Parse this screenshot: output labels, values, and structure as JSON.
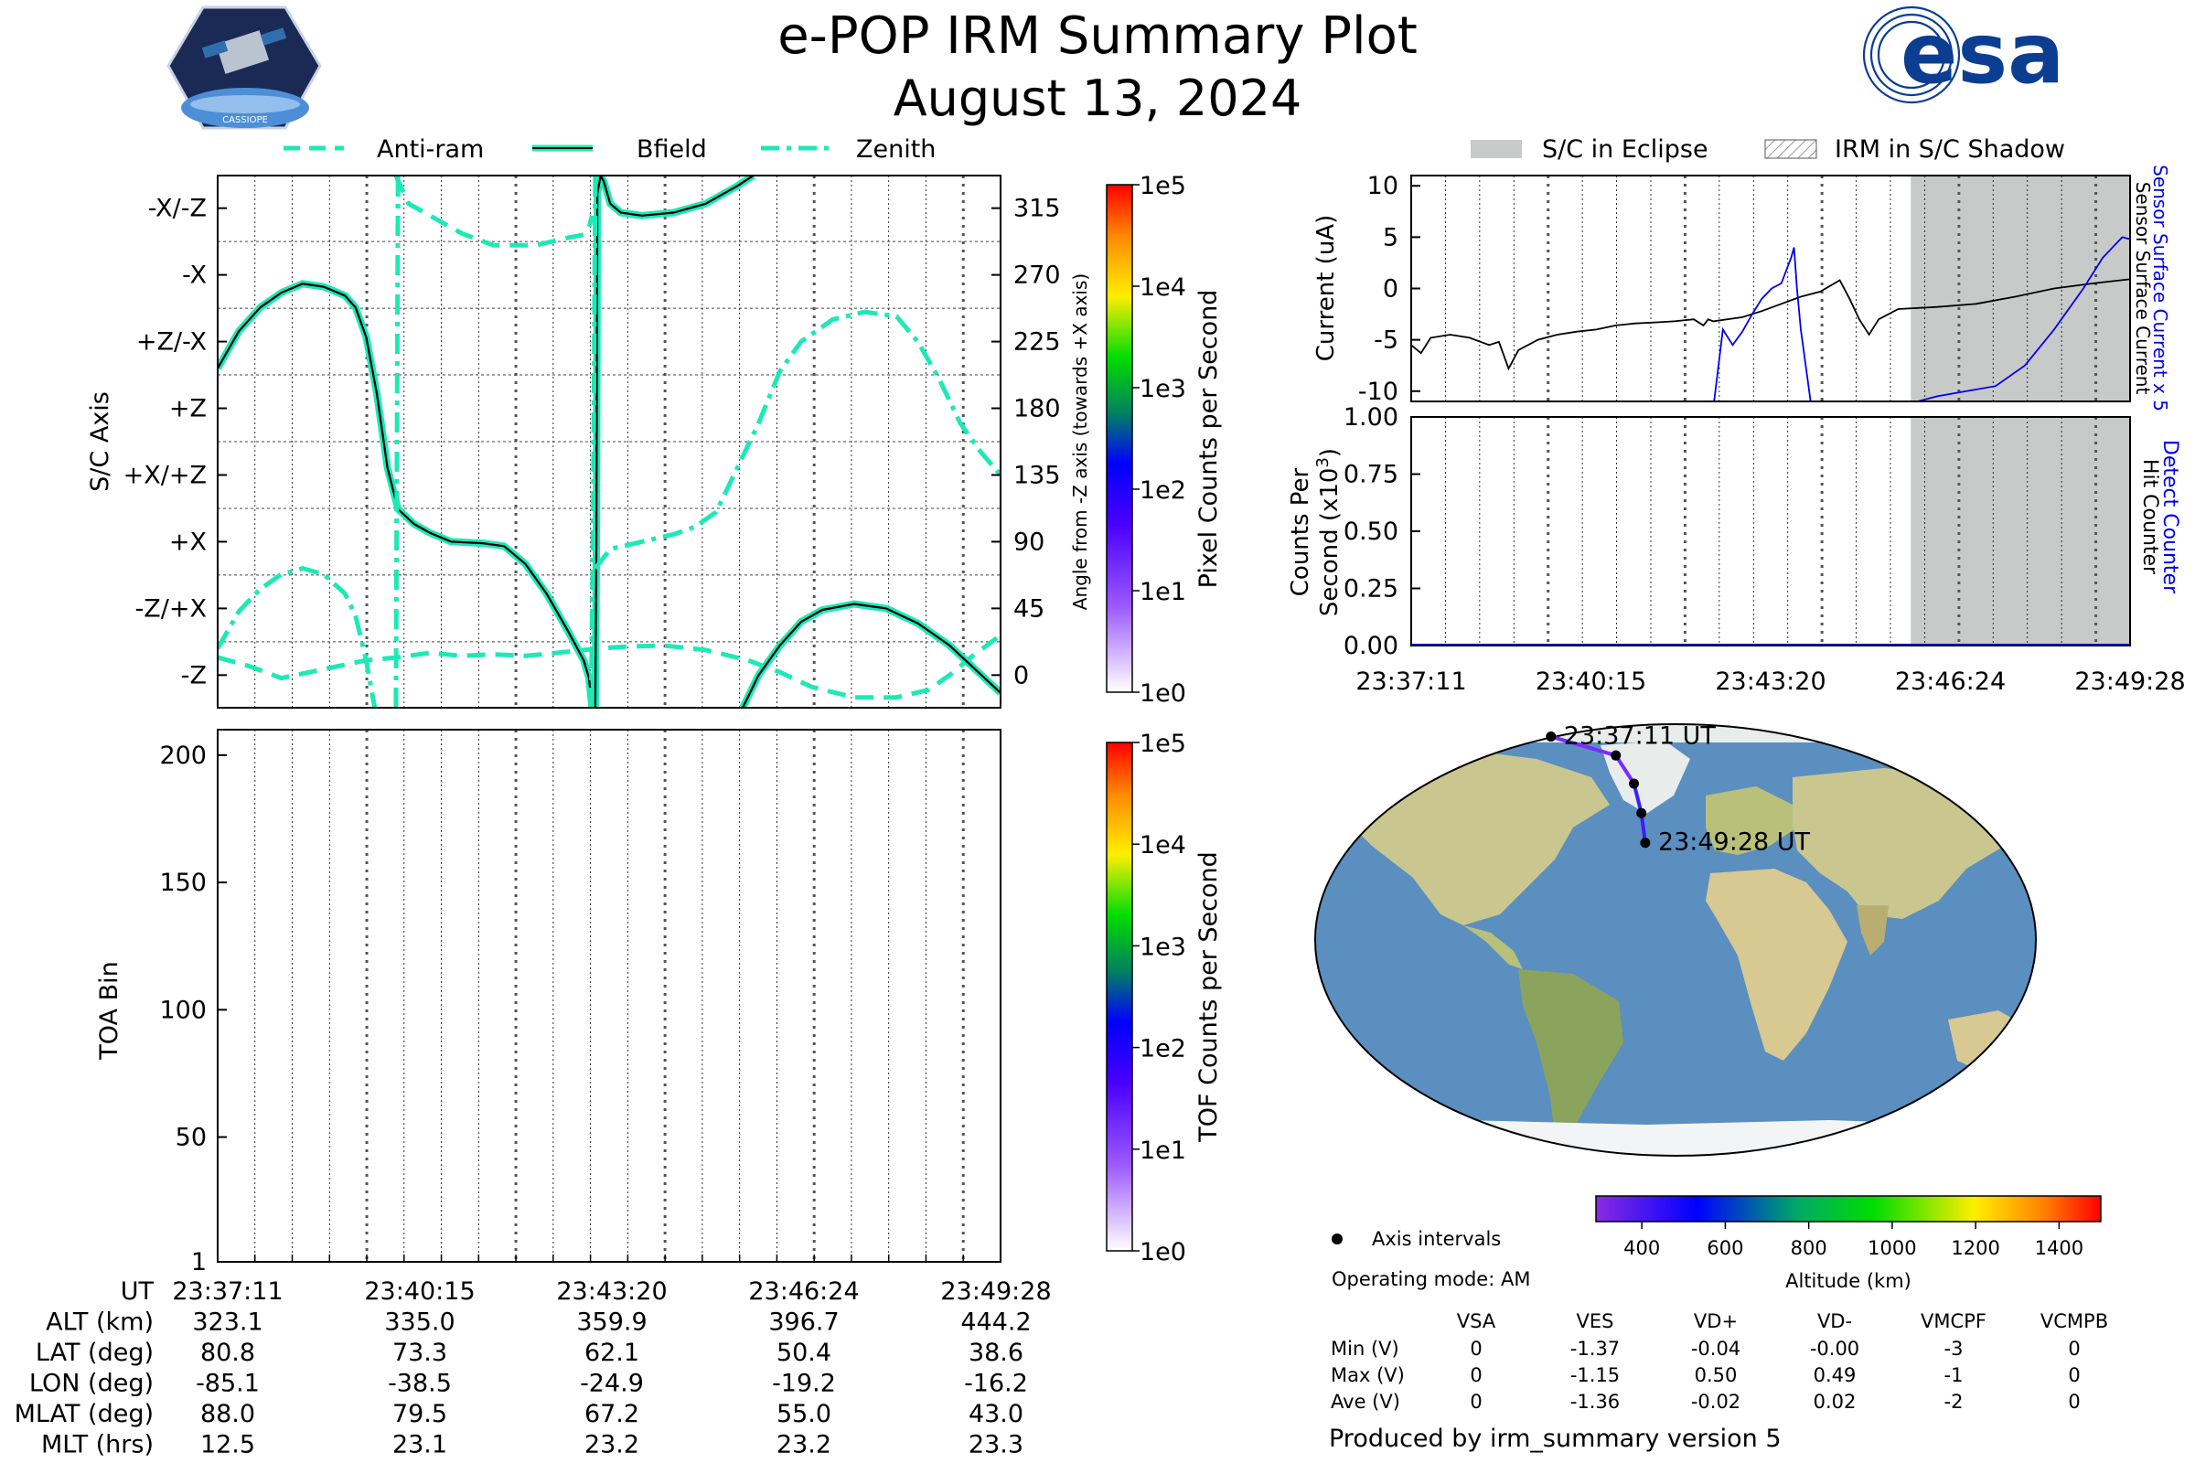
{
  "header": {
    "title": "e-POP IRM Summary Plot",
    "date": "August 13, 2024",
    "logo_left_text": "CASSIOPE",
    "logo_right_text": "esa"
  },
  "legends": {
    "attitude": [
      "Anti-ram",
      "Bfield",
      "Zenith"
    ],
    "eclipse": [
      "S/C in Eclipse",
      "IRM in S/C Shadow"
    ]
  },
  "colors": {
    "attitude_line": "#1de9b6",
    "current_black": "#000000",
    "current_blue": "#0000ee",
    "eclipse_fill": "#c8caca",
    "ocean": "#5b8fc0",
    "land": "#c9c78f"
  },
  "chart_data": [
    {
      "id": "attitude",
      "type": "line",
      "ylabel": "S/C Axis",
      "y2label": "Angle from -Z axis (towards +X axis)",
      "yticklabels": [
        "-X/-Z",
        "-X",
        "+Z/-X",
        "+Z",
        "+X/+Z",
        "+X",
        "-Z/+X",
        "-Z"
      ],
      "y2ticks": [
        315,
        270,
        225,
        180,
        135,
        90,
        45,
        0
      ],
      "ylim": [
        -22,
        337
      ],
      "xlim": [
        0,
        738
      ],
      "colorbar": {
        "label": "Pixel Counts per Second",
        "ticks": [
          "1e5",
          "1e4",
          "1e3",
          "1e2",
          "1e1",
          "1e0"
        ]
      },
      "series": [
        {
          "name": "Anti-ram",
          "style": "dashed",
          "segments": [
            [
              [
                0,
                12
              ],
              [
                30,
                6
              ],
              [
                60,
                -2
              ],
              [
                100,
                4
              ],
              [
                140,
                10
              ],
              [
                170,
                12
              ],
              [
                200,
                15
              ],
              [
                230,
                13
              ],
              [
                260,
                14
              ],
              [
                290,
                13
              ],
              [
                320,
                15
              ],
              [
                345,
                17
              ],
              [
                360,
                18
              ],
              [
                380,
                19
              ],
              [
                420,
                20
              ],
              [
                460,
                17
              ],
              [
                500,
                10
              ],
              [
                530,
                2
              ],
              [
                560,
                -8
              ],
              [
                600,
                -15
              ],
              [
                640,
                -15
              ],
              [
                670,
                -10
              ],
              [
                690,
                0
              ],
              [
                710,
                12
              ],
              [
                738,
                27
              ]
            ],
            [
              [
                168,
                337
              ],
              [
                180,
                318
              ],
              [
                200,
                310
              ],
              [
                230,
                298
              ],
              [
                260,
                290
              ],
              [
                300,
                290
              ],
              [
                330,
                295
              ],
              [
                345,
                297
              ],
              [
                350,
                302
              ],
              [
                353,
                310
              ]
            ]
          ]
        },
        {
          "name": "Bfield",
          "style": "solid",
          "segments": [
            [
              [
                0,
                207
              ],
              [
                20,
                232
              ],
              [
                40,
                248
              ],
              [
                60,
                258
              ],
              [
                80,
                264
              ],
              [
                100,
                262
              ],
              [
                120,
                256
              ],
              [
                130,
                248
              ],
              [
                140,
                228
              ],
              [
                150,
                190
              ],
              [
                160,
                140
              ],
              [
                170,
                112
              ],
              [
                185,
                102
              ],
              [
                200,
                96
              ],
              [
                220,
                90
              ],
              [
                250,
                89
              ],
              [
                270,
                87
              ],
              [
                290,
                75
              ],
              [
                310,
                55
              ],
              [
                330,
                30
              ],
              [
                345,
                10
              ],
              [
                350,
                -2
              ],
              [
                353,
                -22
              ]
            ],
            [
              [
                356,
                -22
              ],
              [
                357,
                90
              ],
              [
                358,
                337
              ]
            ],
            [
              [
                358,
                325
              ],
              [
                361,
                337
              ],
              [
                364,
                333
              ],
              [
                370,
                318
              ],
              [
                380,
                312
              ],
              [
                400,
                310
              ],
              [
                430,
                312
              ],
              [
                460,
                318
              ],
              [
                490,
                330
              ],
              [
                505,
                337
              ]
            ],
            [
              [
                495,
                -22
              ],
              [
                510,
                0
              ],
              [
                530,
                20
              ],
              [
                550,
                36
              ],
              [
                570,
                44
              ],
              [
                600,
                48
              ],
              [
                630,
                45
              ],
              [
                660,
                35
              ],
              [
                690,
                20
              ],
              [
                720,
                0
              ],
              [
                738,
                -12
              ]
            ]
          ]
        },
        {
          "name": "Zenith",
          "style": "dashdot",
          "segments": [
            [
              [
                0,
                18
              ],
              [
                20,
                43
              ],
              [
                40,
                58
              ],
              [
                60,
                68
              ],
              [
                80,
                72
              ],
              [
                100,
                68
              ],
              [
                120,
                55
              ],
              [
                130,
                40
              ],
              [
                140,
                10
              ],
              [
                148,
                -22
              ]
            ],
            [
              [
                168,
                -22
              ],
              [
                169,
                150
              ],
              [
                170,
                337
              ]
            ],
            [
              [
                352,
                -22
              ],
              [
                354,
                110
              ],
              [
                356,
                337
              ]
            ],
            [
              [
                356,
                72
              ],
              [
                370,
                85
              ],
              [
                400,
                90
              ],
              [
                430,
                95
              ],
              [
                450,
                100
              ],
              [
                470,
                110
              ],
              [
                490,
                140
              ],
              [
                510,
                170
              ],
              [
                530,
                205
              ],
              [
                550,
                225
              ],
              [
                580,
                240
              ],
              [
                610,
                245
              ],
              [
                640,
                242
              ],
              [
                660,
                225
              ],
              [
                680,
                200
              ],
              [
                700,
                170
              ],
              [
                720,
                150
              ],
              [
                738,
                135
              ]
            ]
          ]
        }
      ]
    },
    {
      "id": "toa",
      "type": "heatmap",
      "ylabel": "TOA Bin",
      "yticks": [
        200,
        150,
        100,
        50,
        1
      ],
      "ylim": [
        1,
        210
      ],
      "colorbar": {
        "label": "TOF Counts per Second",
        "ticks": [
          "1e5",
          "1e4",
          "1e3",
          "1e2",
          "1e1",
          "1e0"
        ]
      },
      "x_time_labels": [
        "23:37:11",
        "23:40:15",
        "23:43:20",
        "23:46:24",
        "23:49:28"
      ]
    },
    {
      "id": "current",
      "type": "line",
      "ylabel": "Current (uA)",
      "y2label_black": "Sensor Surface Current",
      "y2label_blue": "Sensor Surface Current x 5",
      "yticks": [
        10,
        5,
        0,
        -5,
        -10
      ],
      "ylim": [
        -11,
        11
      ],
      "eclipse_start_fraction": 0.695,
      "series": [
        {
          "name": "Sensor Surface Current",
          "values": [
            [
              0,
              -5.5
            ],
            [
              10,
              -6.3
            ],
            [
              20,
              -4.8
            ],
            [
              40,
              -4.5
            ],
            [
              60,
              -4.8
            ],
            [
              80,
              -5.5
            ],
            [
              90,
              -5.2
            ],
            [
              100,
              -7.8
            ],
            [
              110,
              -6
            ],
            [
              130,
              -5
            ],
            [
              150,
              -4.5
            ],
            [
              170,
              -4.2
            ],
            [
              190,
              -4
            ],
            [
              210,
              -3.6
            ],
            [
              230,
              -3.4
            ],
            [
              250,
              -3.3
            ],
            [
              270,
              -3.2
            ],
            [
              290,
              -3
            ],
            [
              300,
              -3.6
            ],
            [
              305,
              -3
            ],
            [
              310,
              -3.2
            ],
            [
              340,
              -2.8
            ],
            [
              360,
              -2.2
            ],
            [
              380,
              -1.5
            ],
            [
              400,
              -0.8
            ],
            [
              420,
              -0.3
            ],
            [
              440,
              0.8
            ],
            [
              450,
              -1
            ],
            [
              460,
              -3
            ],
            [
              470,
              -4.5
            ],
            [
              480,
              -3
            ],
            [
              500,
              -2
            ],
            [
              540,
              -1.8
            ],
            [
              580,
              -1.5
            ],
            [
              620,
              -0.8
            ],
            [
              660,
              0
            ],
            [
              700,
              0.5
            ],
            [
              738,
              0.9
            ]
          ]
        },
        {
          "name": "Sensor Surface Current x 5",
          "values": [
            [
              311,
              -11
            ],
            [
              320,
              -4
            ],
            [
              330,
              -5.5
            ],
            [
              340,
              -4.2
            ],
            [
              350,
              -2.5
            ],
            [
              360,
              -1
            ],
            [
              370,
              0
            ],
            [
              380,
              0.5
            ],
            [
              390,
              3
            ],
            [
              393,
              4
            ],
            [
              396,
              0
            ],
            [
              400,
              -4
            ],
            [
              410,
              -11
            ]
          ]
        },
        {
          "name": "Sensor Surface Current x 5 (late)",
          "values": [
            [
              520,
              -11
            ],
            [
              540,
              -10.5
            ],
            [
              570,
              -10
            ],
            [
              600,
              -9.5
            ],
            [
              630,
              -7.5
            ],
            [
              660,
              -4
            ],
            [
              690,
              0
            ],
            [
              710,
              3
            ],
            [
              730,
              5
            ],
            [
              738,
              4.8
            ]
          ]
        }
      ]
    },
    {
      "id": "counts",
      "type": "line",
      "ylabel": "Counts Per Second (x10^3)",
      "y2label_blue": "Detect Counter",
      "y2label_black": "Hit Counter",
      "yticks": [
        1.0,
        0.75,
        0.5,
        0.25,
        0.0
      ],
      "ytick_labels": [
        "1.00",
        "0.75",
        "0.50",
        "0.25",
        "0.00"
      ],
      "ylim": [
        0,
        1
      ],
      "eclipse_start_fraction": 0.695,
      "x_time_labels": [
        "23:37:11",
        "23:40:15",
        "23:43:20",
        "23:46:24",
        "23:49:28"
      ],
      "series": [
        {
          "name": "Detect Counter",
          "values": [
            [
              0,
              0
            ],
            [
              738,
              0
            ]
          ]
        }
      ]
    },
    {
      "id": "map",
      "type": "scatter",
      "start_label": "23:37:11 UT",
      "end_label": "23:49:28 UT",
      "track": [
        [
          -85.1,
          80.8
        ],
        [
          -38.5,
          73.3
        ],
        [
          -24.9,
          62.1
        ],
        [
          -19.2,
          50.4
        ],
        [
          -16.2,
          38.6
        ]
      ],
      "colorbar": {
        "label": "Altitude (km)",
        "ticks": [
          400,
          600,
          800,
          1000,
          1200,
          1400
        ],
        "range": [
          290,
          1500
        ]
      }
    }
  ],
  "orbit_table": {
    "rows": [
      {
        "label": "UT",
        "values": [
          "23:37:11",
          "23:40:15",
          "23:43:20",
          "23:46:24",
          "23:49:28"
        ]
      },
      {
        "label": "ALT (km)",
        "values": [
          "323.1",
          "335.0",
          "359.9",
          "396.7",
          "444.2"
        ]
      },
      {
        "label": "LAT (deg)",
        "values": [
          "80.8",
          "73.3",
          "62.1",
          "50.4",
          "38.6"
        ]
      },
      {
        "label": "LON (deg)",
        "values": [
          "-85.1",
          "-38.5",
          "-24.9",
          "-19.2",
          "-16.2"
        ]
      },
      {
        "label": "MLAT (deg)",
        "values": [
          "88.0",
          "79.5",
          "67.2",
          "55.0",
          "43.0"
        ]
      },
      {
        "label": "MLT (hrs)",
        "values": [
          "12.5",
          "23.1",
          "23.2",
          "23.2",
          "23.3"
        ]
      }
    ]
  },
  "info": {
    "axis_intervals": "Axis intervals",
    "operating_mode": "Operating mode: AM",
    "produced_by": "Produced by irm_summary version 5"
  },
  "voltage_table": {
    "columns": [
      "VSA",
      "VES",
      "VD+",
      "VD-",
      "VMCPF",
      "VCMPB"
    ],
    "rows": [
      {
        "label": "Min (V)",
        "values": [
          "0",
          "-1.37",
          "-0.04",
          "-0.00",
          "-3",
          "0"
        ]
      },
      {
        "label": "Max (V)",
        "values": [
          "0",
          "-1.15",
          "0.50",
          "0.49",
          "-1",
          "0"
        ]
      },
      {
        "label": "Ave (V)",
        "values": [
          "0",
          "-1.36",
          "-0.02",
          "0.02",
          "-2",
          "0"
        ]
      }
    ]
  }
}
